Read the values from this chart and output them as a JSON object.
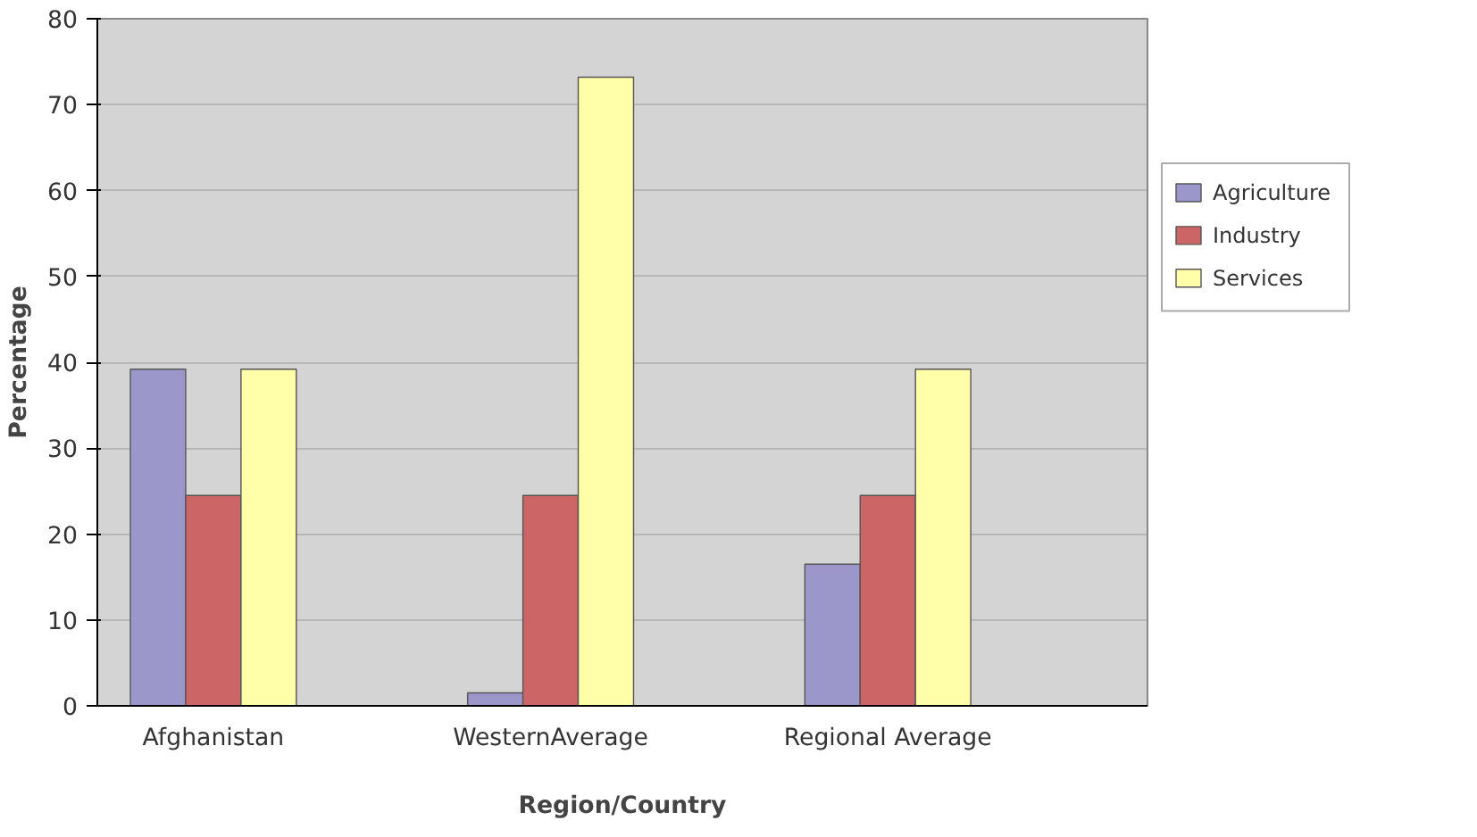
{
  "chart_data": {
    "type": "bar",
    "xlabel": "Region/Country",
    "ylabel": "Percentage",
    "categories": [
      "Afghanistan",
      "WesternAverage",
      "Regional Average"
    ],
    "series": [
      {
        "name": "Agriculture",
        "color": "#9b97cb",
        "values": [
          39.2,
          1.5,
          16.5
        ]
      },
      {
        "name": "Industry",
        "color": "#cc6666",
        "values": [
          24.5,
          24.5,
          24.5
        ]
      },
      {
        "name": "Services",
        "color": "#ffffaa",
        "values": [
          39.2,
          73.2,
          39.2
        ]
      }
    ],
    "ylim": [
      0,
      80
    ],
    "yticks": [
      0,
      10,
      20,
      30,
      40,
      50,
      60,
      70,
      80
    ],
    "grid": "y",
    "legend": "right"
  }
}
